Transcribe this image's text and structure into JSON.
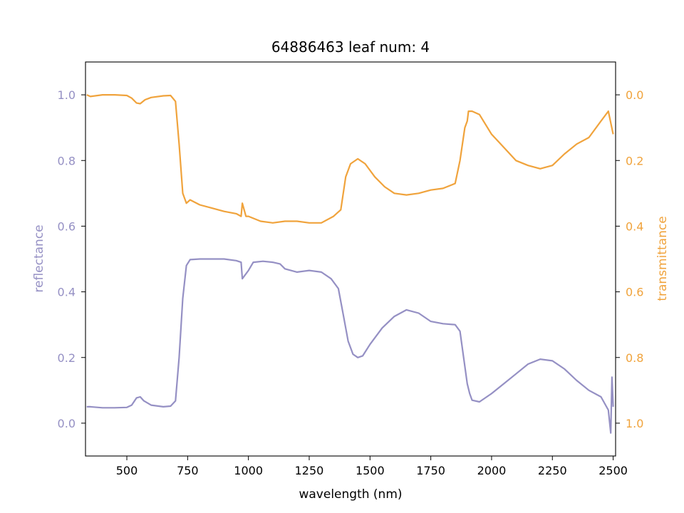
{
  "chart_data": {
    "type": "line",
    "title": "64886463 leaf num: 4",
    "xlabel": "wavelength (nm)",
    "ylabel_left": "reflectance",
    "ylabel_right": "transmittance",
    "xlim": [
      330,
      2510
    ],
    "ylim_left": [
      -0.1,
      1.1
    ],
    "ylim_right": [
      1.1,
      -0.1
    ],
    "x_ticks": [
      500,
      750,
      1000,
      1250,
      1500,
      1750,
      2000,
      2250,
      2500
    ],
    "x_tick_labels": [
      "500",
      "750",
      "1000",
      "1250",
      "1500",
      "1750",
      "2000",
      "2250",
      "2500"
    ],
    "left_ticks": [
      0.0,
      0.2,
      0.4,
      0.6,
      0.8,
      1.0
    ],
    "left_tick_labels": [
      "0.0",
      "0.2",
      "0.4",
      "0.6",
      "0.8",
      "1.0"
    ],
    "right_ticks": [
      0.0,
      0.2,
      0.4,
      0.6,
      0.8,
      1.0
    ],
    "right_tick_labels": [
      "0.0",
      "0.2",
      "0.4",
      "0.6",
      "0.8",
      "1.0"
    ],
    "grid": false,
    "colors": {
      "reflectance": "#9590c4",
      "transmittance": "#f0a33c",
      "axes": "#000000"
    },
    "series": [
      {
        "axis": "left",
        "color": "#9590c4",
        "points": [
          [
            335,
            0.05
          ],
          [
            350,
            0.05
          ],
          [
            400,
            0.047
          ],
          [
            450,
            0.047
          ],
          [
            500,
            0.048
          ],
          [
            520,
            0.055
          ],
          [
            540,
            0.077
          ],
          [
            555,
            0.08
          ],
          [
            570,
            0.068
          ],
          [
            600,
            0.055
          ],
          [
            650,
            0.05
          ],
          [
            680,
            0.052
          ],
          [
            700,
            0.068
          ],
          [
            715,
            0.2
          ],
          [
            730,
            0.38
          ],
          [
            745,
            0.48
          ],
          [
            760,
            0.498
          ],
          [
            800,
            0.5
          ],
          [
            850,
            0.5
          ],
          [
            900,
            0.5
          ],
          [
            950,
            0.495
          ],
          [
            970,
            0.49
          ],
          [
            975,
            0.44
          ],
          [
            1000,
            0.465
          ],
          [
            1020,
            0.49
          ],
          [
            1060,
            0.493
          ],
          [
            1100,
            0.49
          ],
          [
            1130,
            0.485
          ],
          [
            1150,
            0.47
          ],
          [
            1200,
            0.46
          ],
          [
            1250,
            0.465
          ],
          [
            1300,
            0.46
          ],
          [
            1340,
            0.44
          ],
          [
            1370,
            0.41
          ],
          [
            1390,
            0.33
          ],
          [
            1410,
            0.25
          ],
          [
            1430,
            0.21
          ],
          [
            1450,
            0.2
          ],
          [
            1470,
            0.205
          ],
          [
            1500,
            0.24
          ],
          [
            1550,
            0.29
          ],
          [
            1600,
            0.325
          ],
          [
            1650,
            0.345
          ],
          [
            1700,
            0.335
          ],
          [
            1750,
            0.31
          ],
          [
            1800,
            0.303
          ],
          [
            1850,
            0.3
          ],
          [
            1870,
            0.28
          ],
          [
            1885,
            0.2
          ],
          [
            1900,
            0.12
          ],
          [
            1910,
            0.09
          ],
          [
            1920,
            0.07
          ],
          [
            1950,
            0.065
          ],
          [
            2000,
            0.09
          ],
          [
            2050,
            0.12
          ],
          [
            2100,
            0.15
          ],
          [
            2150,
            0.18
          ],
          [
            2200,
            0.195
          ],
          [
            2250,
            0.19
          ],
          [
            2300,
            0.165
          ],
          [
            2350,
            0.13
          ],
          [
            2400,
            0.1
          ],
          [
            2450,
            0.08
          ],
          [
            2480,
            0.04
          ],
          [
            2490,
            -0.03
          ],
          [
            2495,
            0.14
          ],
          [
            2500,
            0.05
          ]
        ]
      },
      {
        "axis": "right",
        "color": "#f0a33c",
        "points": [
          [
            335,
            0.0
          ],
          [
            350,
            0.005
          ],
          [
            400,
            0.0
          ],
          [
            450,
            0.0
          ],
          [
            500,
            0.002
          ],
          [
            520,
            0.01
          ],
          [
            540,
            0.025
          ],
          [
            555,
            0.027
          ],
          [
            575,
            0.015
          ],
          [
            600,
            0.008
          ],
          [
            650,
            0.003
          ],
          [
            680,
            0.002
          ],
          [
            700,
            0.02
          ],
          [
            715,
            0.15
          ],
          [
            730,
            0.3
          ],
          [
            745,
            0.33
          ],
          [
            760,
            0.32
          ],
          [
            800,
            0.335
          ],
          [
            850,
            0.345
          ],
          [
            900,
            0.355
          ],
          [
            950,
            0.362
          ],
          [
            970,
            0.37
          ],
          [
            975,
            0.33
          ],
          [
            990,
            0.37
          ],
          [
            1000,
            0.37
          ],
          [
            1050,
            0.385
          ],
          [
            1100,
            0.39
          ],
          [
            1150,
            0.385
          ],
          [
            1200,
            0.385
          ],
          [
            1250,
            0.39
          ],
          [
            1300,
            0.39
          ],
          [
            1350,
            0.37
          ],
          [
            1380,
            0.35
          ],
          [
            1400,
            0.25
          ],
          [
            1420,
            0.21
          ],
          [
            1450,
            0.195
          ],
          [
            1480,
            0.21
          ],
          [
            1520,
            0.25
          ],
          [
            1560,
            0.28
          ],
          [
            1600,
            0.3
          ],
          [
            1650,
            0.305
          ],
          [
            1700,
            0.3
          ],
          [
            1750,
            0.29
          ],
          [
            1800,
            0.285
          ],
          [
            1850,
            0.27
          ],
          [
            1870,
            0.2
          ],
          [
            1890,
            0.1
          ],
          [
            1900,
            0.08
          ],
          [
            1905,
            0.05
          ],
          [
            1920,
            0.05
          ],
          [
            1950,
            0.06
          ],
          [
            2000,
            0.12
          ],
          [
            2050,
            0.16
          ],
          [
            2100,
            0.2
          ],
          [
            2150,
            0.215
          ],
          [
            2200,
            0.225
          ],
          [
            2250,
            0.215
          ],
          [
            2300,
            0.18
          ],
          [
            2350,
            0.15
          ],
          [
            2400,
            0.13
          ],
          [
            2450,
            0.08
          ],
          [
            2480,
            0.05
          ],
          [
            2500,
            0.12
          ]
        ]
      }
    ]
  }
}
